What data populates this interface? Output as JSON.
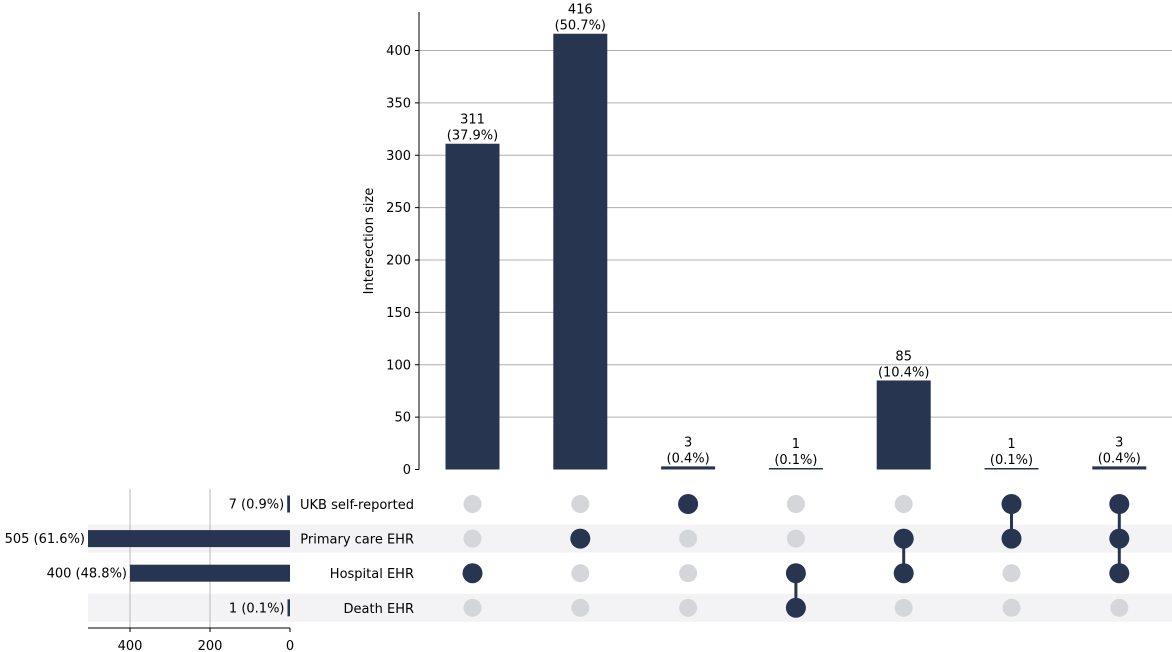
{
  "chart_data": {
    "type": "upset",
    "ylabel": "Intersection size",
    "y_ticks": [
      0,
      50,
      100,
      150,
      200,
      250,
      300,
      350,
      400
    ],
    "ylim": [
      0,
      435
    ],
    "sets": [
      "UKB self-reported",
      "Primary care EHR",
      "Hospital EHR",
      "Death EHR"
    ],
    "set_sizes": [
      7,
      505,
      400,
      1
    ],
    "set_size_labels": [
      "7 (0.9%)",
      "505 (61.6%)",
      "400 (48.8%)",
      "1 (0.1%)"
    ],
    "set_size_ticks": [
      400,
      200,
      0
    ],
    "set_size_xlim": [
      505,
      0
    ],
    "intersections": [
      {
        "members": [
          2
        ],
        "value": 311,
        "label": "311",
        "pct": "(37.9%)"
      },
      {
        "members": [
          1
        ],
        "value": 416,
        "label": "416",
        "pct": "(50.7%)"
      },
      {
        "members": [
          0
        ],
        "value": 3,
        "label": "3",
        "pct": "(0.4%)"
      },
      {
        "members": [
          2,
          3
        ],
        "value": 1,
        "label": "1",
        "pct": "(0.1%)"
      },
      {
        "members": [
          1,
          2
        ],
        "value": 85,
        "label": "85",
        "pct": "(10.4%)"
      },
      {
        "members": [
          0,
          1
        ],
        "value": 1,
        "label": "1",
        "pct": "(0.1%)"
      },
      {
        "members": [
          0,
          1,
          2
        ],
        "value": 3,
        "label": "3",
        "pct": "(0.4%)"
      }
    ],
    "grid": true
  },
  "colors": {
    "bar": "#273550",
    "dot_active": "#273550",
    "dot_inactive": "#d4d6da",
    "stripe": "#f3f3f5",
    "grid": "#b0b0b0",
    "axis": "#000000"
  }
}
